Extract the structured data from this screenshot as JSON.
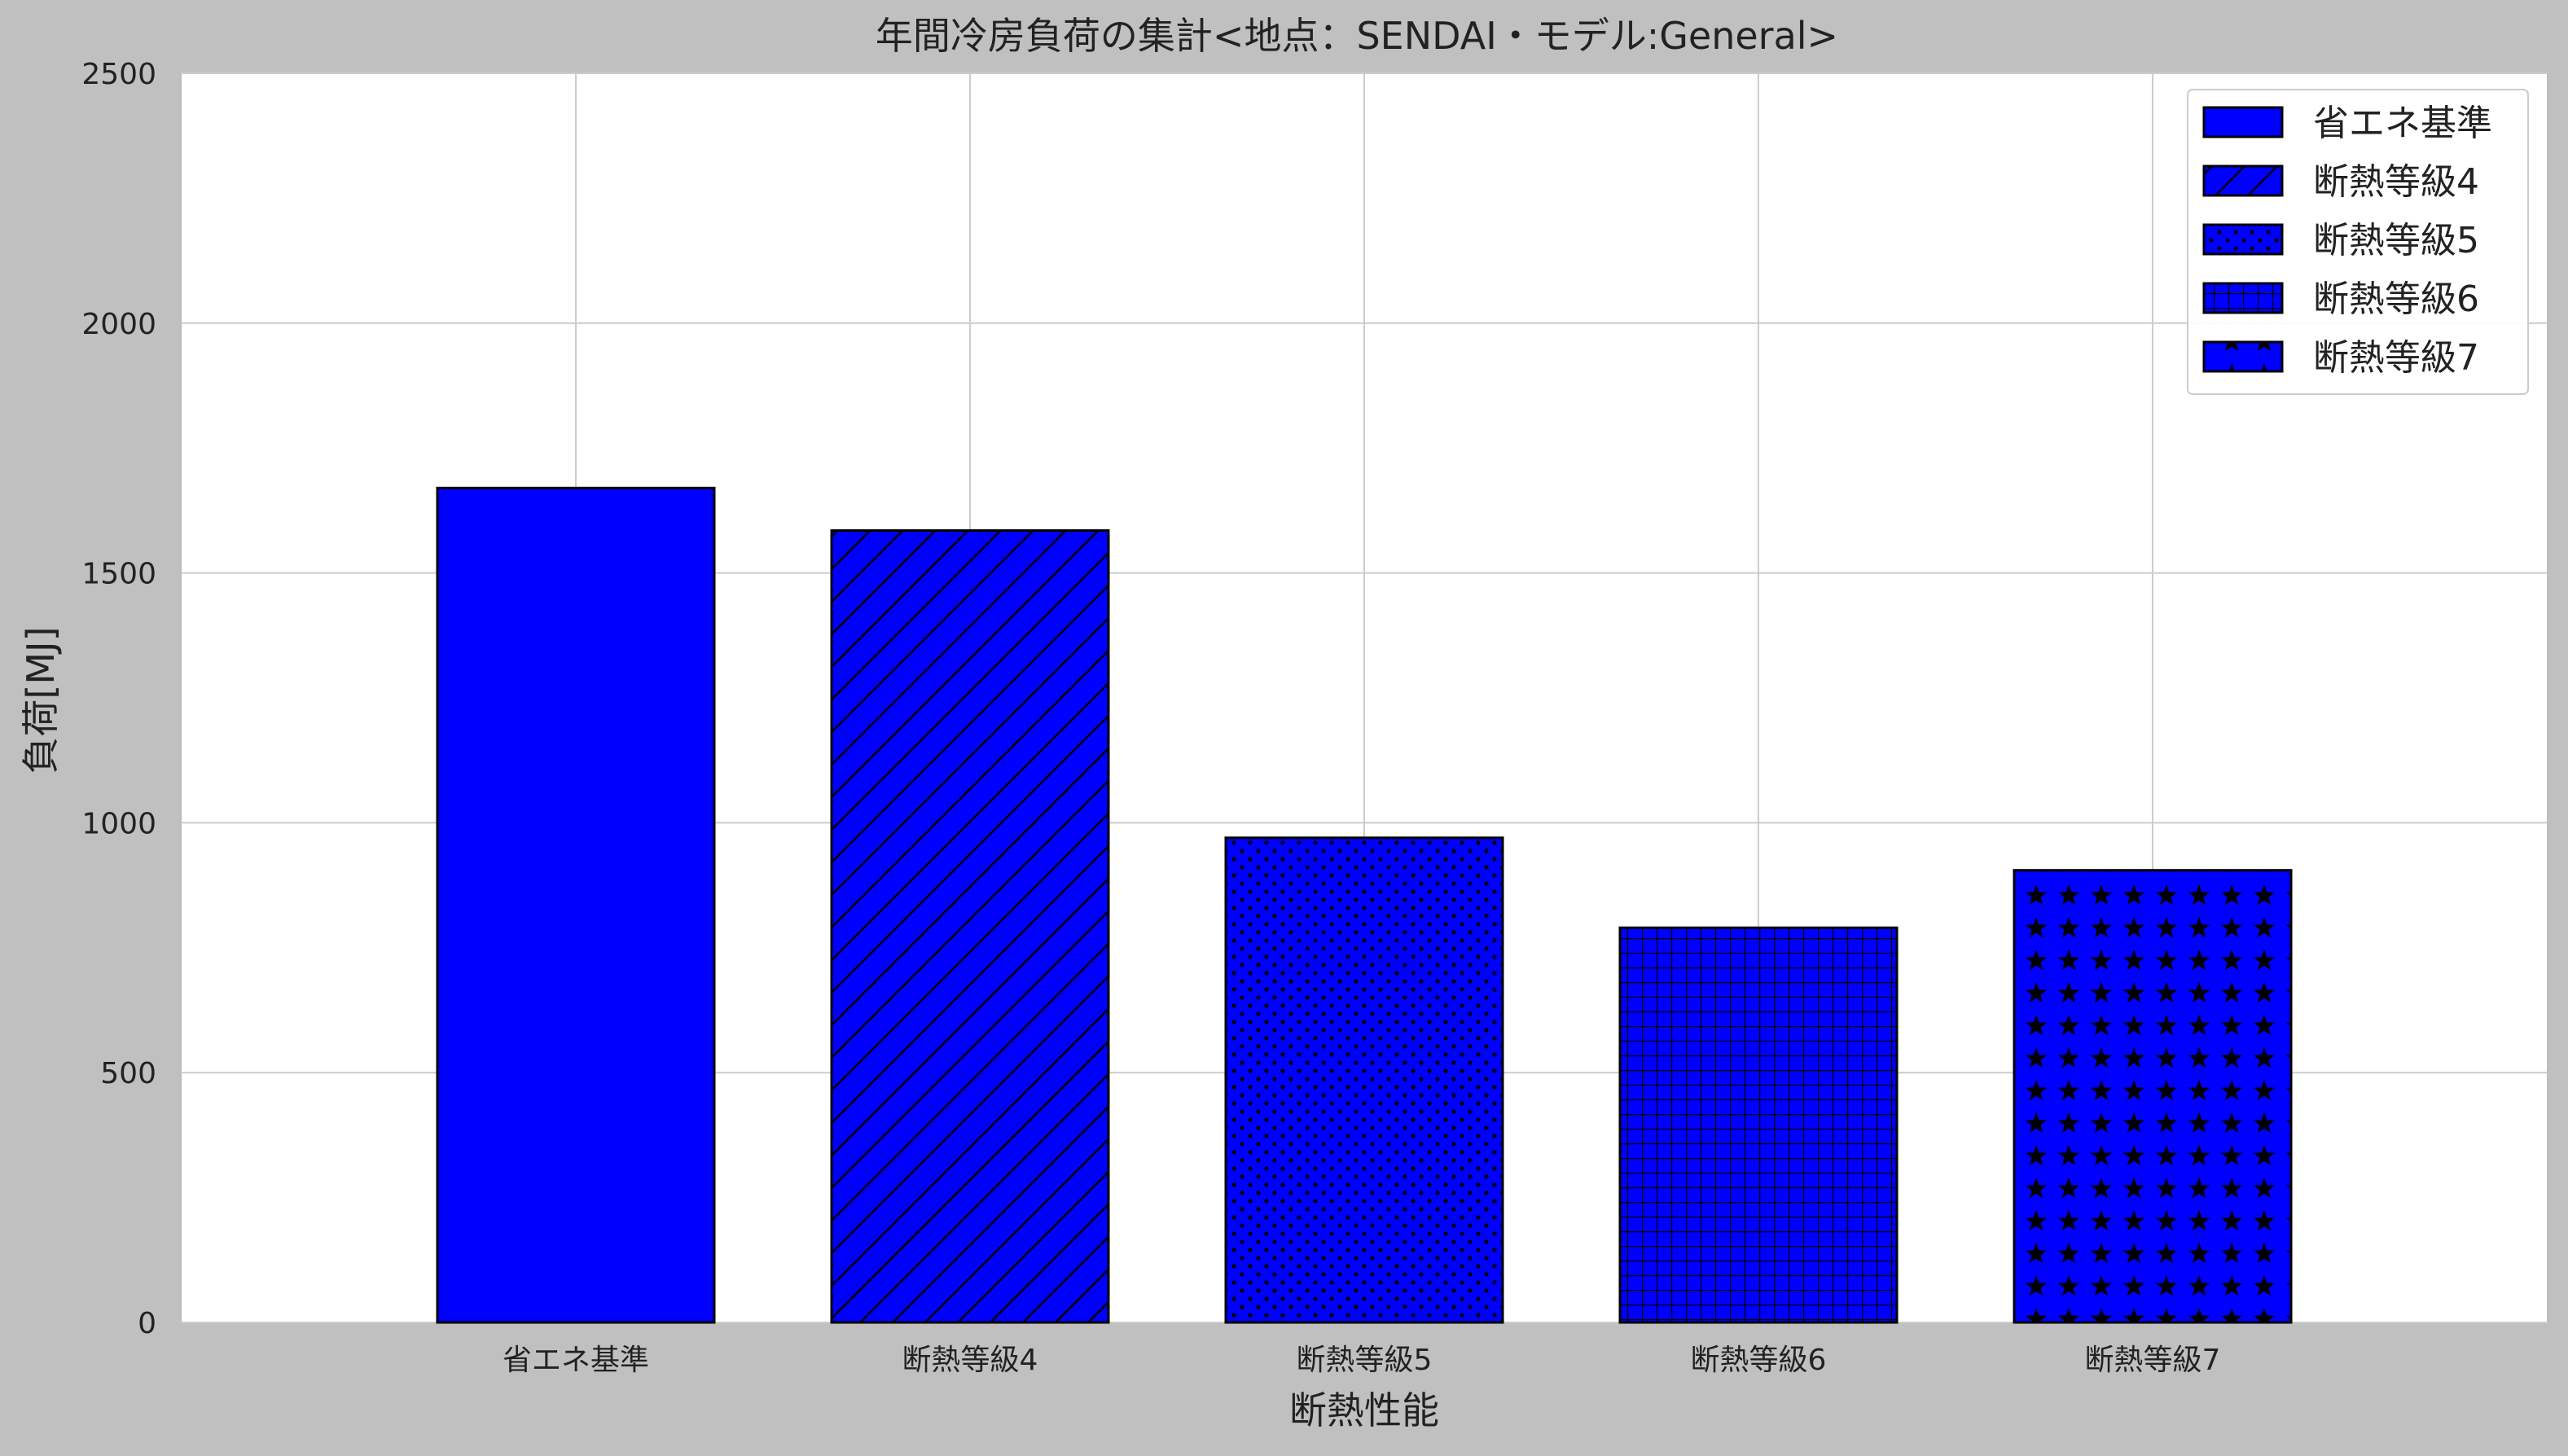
{
  "chart_data": {
    "type": "bar",
    "title": "年間冷房負荷の集計<地点：SENDAI・モデル:General>",
    "xlabel": "断熱性能",
    "ylabel": "負荷[MJ]",
    "ylim": [
      0,
      2500
    ],
    "yticks": [
      0,
      500,
      1000,
      1500,
      2000,
      2500
    ],
    "categories": [
      "省エネ基準",
      "断熱等級4",
      "断熱等級5",
      "断熱等級6",
      "断熱等級7"
    ],
    "values": [
      1670,
      1585,
      970,
      790,
      905
    ],
    "hatches": [
      "none",
      "diagonal",
      "dots",
      "grid",
      "stars"
    ],
    "bar_color": "#0000ff",
    "edge_color": "#000000",
    "grid": true,
    "legend_position": "top-right",
    "legend": [
      "省エネ基準",
      "断熱等級4",
      "断熱等級5",
      "断熱等級6",
      "断熱等級7"
    ]
  }
}
